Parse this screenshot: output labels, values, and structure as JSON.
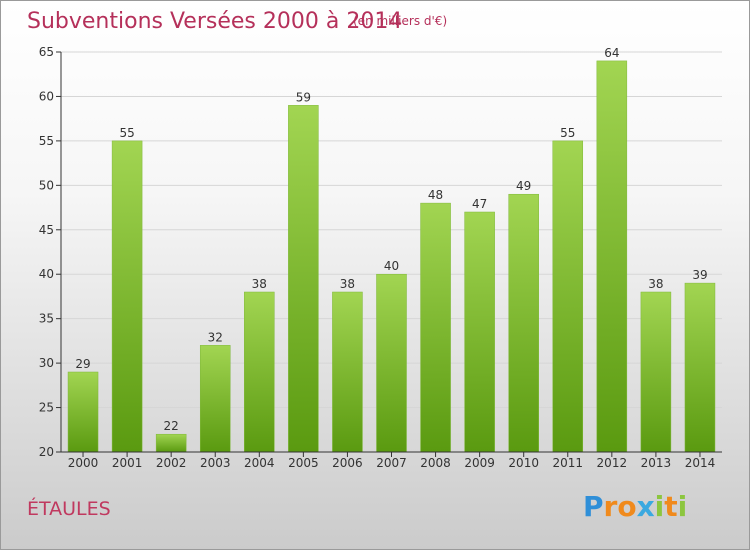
{
  "title": "Subventions Versées 2000 à 2014",
  "unit_label": "(en milliers d'€)",
  "town": "ÉTAULES",
  "logo": {
    "text": "Proxiti",
    "letters": [
      {
        "ch": "P",
        "color": "#2f8fd8"
      },
      {
        "ch": "r",
        "color": "#f08a1c"
      },
      {
        "ch": "o",
        "color": "#f08a1c"
      },
      {
        "ch": "x",
        "color": "#3aa9e0"
      },
      {
        "ch": "i",
        "color": "#8cc63f"
      },
      {
        "ch": "t",
        "color": "#f08a1c"
      },
      {
        "ch": "i",
        "color": "#8cc63f"
      }
    ]
  },
  "colors": {
    "bar_top": "#a2d552",
    "bar_bottom": "#5a9a10",
    "title": "#b5305a",
    "axis": "#333333",
    "grid": "#d6d6d6"
  },
  "chart_data": {
    "type": "bar",
    "categories": [
      "2000",
      "2001",
      "2002",
      "2003",
      "2004",
      "2005",
      "2006",
      "2007",
      "2008",
      "2009",
      "2010",
      "2011",
      "2012",
      "2013",
      "2014"
    ],
    "values": [
      29,
      55,
      22,
      32,
      38,
      59,
      38,
      40,
      48,
      47,
      49,
      55,
      64,
      38,
      39
    ],
    "ylim": [
      20,
      65
    ],
    "yticks": [
      20,
      25,
      30,
      35,
      40,
      45,
      50,
      55,
      60,
      65
    ],
    "grid": true,
    "xlabel": "",
    "ylabel": ""
  }
}
